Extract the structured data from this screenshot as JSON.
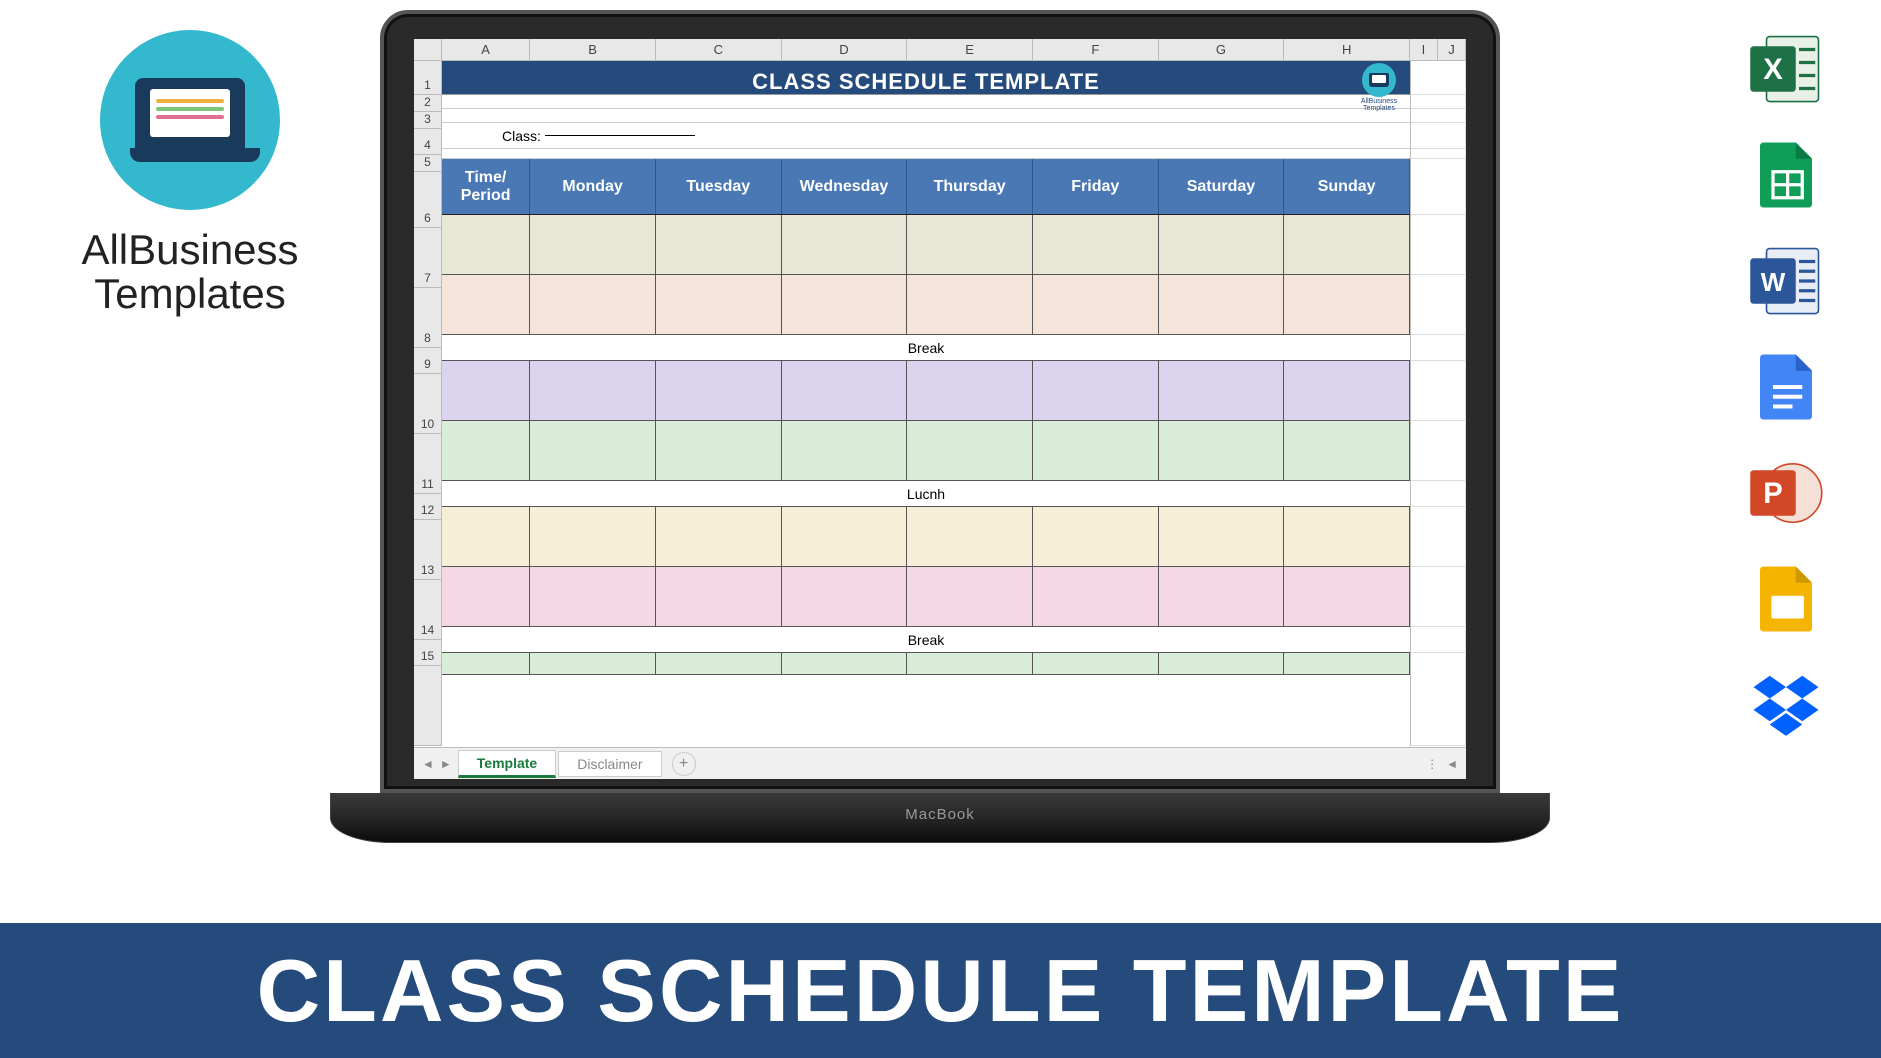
{
  "brand": {
    "line1": "AllBusiness",
    "line2": "Templates"
  },
  "banner": {
    "text": "CLASS SCHEDULE TEMPLATE"
  },
  "laptop": {
    "brand": "MacBook"
  },
  "spreadsheet": {
    "title": "CLASS SCHEDULE TEMPLATE",
    "class_label": "Class:",
    "column_letters": [
      "A",
      "B",
      "C",
      "D",
      "E",
      "F",
      "G",
      "H",
      "I",
      "J"
    ],
    "row_numbers": [
      "1",
      "2",
      "3",
      "4",
      "5",
      "6",
      "7",
      "8",
      "9",
      "10",
      "11",
      "12",
      "13",
      "14",
      "15"
    ],
    "day_headers": [
      "Time/ Period",
      "Monday",
      "Tuesday",
      "Wednesday",
      "Thursday",
      "Friday",
      "Saturday",
      "Sunday"
    ],
    "label_rows": {
      "break1": "Break",
      "lunch": "Lucnh",
      "break2": "Break"
    },
    "period_colors": {
      "r7": "#e8e6d4",
      "r8": "#f4e4da",
      "r10": "#dcd4ee",
      "r11": "#d8ecd8",
      "r13": "#f6eed6",
      "r14": "#f4d8e6",
      "r16": "#d8ecd8"
    },
    "header_bg": "#4a78b5",
    "title_bg": "#254a7c",
    "sheet_tabs": {
      "active": "Template",
      "inactive": "Disclaimer"
    },
    "badge": "AllBusiness Templates"
  },
  "format_icons": [
    "excel",
    "sheets",
    "word",
    "docs",
    "powerpoint",
    "slides",
    "dropbox"
  ],
  "colors": {
    "banner_bg": "#254a7c",
    "brand_circle": "#33b8ce",
    "excel": "#1e7145",
    "sheets": "#0f9d58",
    "word": "#2b579a",
    "docs": "#4285f4",
    "ppt": "#d24726",
    "slides": "#f4b400",
    "dropbox": "#0061ff"
  }
}
